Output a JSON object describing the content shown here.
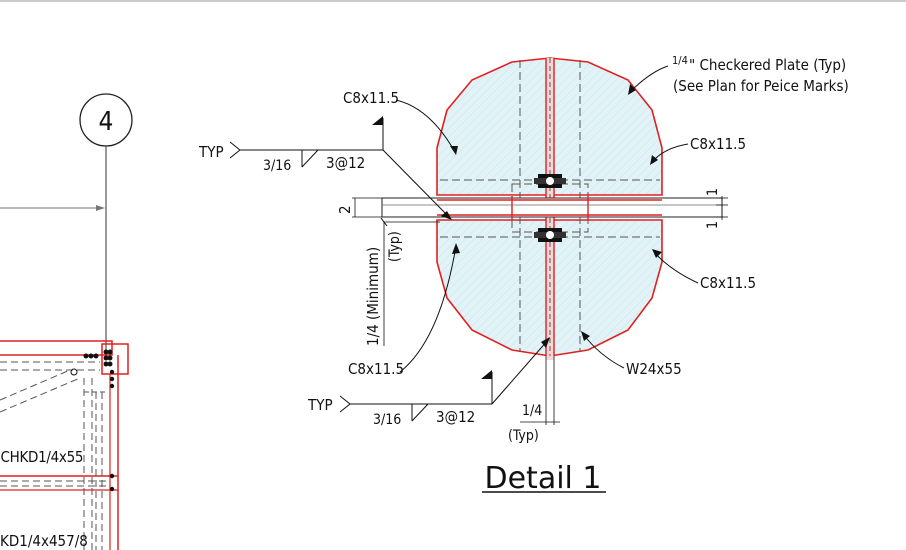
{
  "detail_title": "Detail 1",
  "grid_bubble": "4",
  "labels": {
    "checkered_plate_frac": "1/4",
    "checkered_plate": "\" Checkered Plate (Typ)",
    "see_plan": "(See Plan for Peice Marks)",
    "c8_top_left": "C8x11.5",
    "c8_top_right": "C8x11.5",
    "c8_bottom_right": "C8x11.5",
    "c8_bottom_left": "C8x11.5",
    "w24": "W24x55",
    "typ_top": "TYP",
    "typ_bottom": "TYP",
    "weld_size_top": "3/16",
    "weld_pitch_top": "3@12",
    "weld_size_bottom": "3/16",
    "weld_pitch_bottom": "3@12",
    "dim_2": "2",
    "dim_1_top": "1",
    "dim_1_bottom": "1",
    "min_quarter": "1/4 (Minimum)",
    "min_typ": "(Typ)",
    "quarter_bottom": "1/4",
    "typ_paren_bottom": "(Typ)",
    "chkd_1": "CHKD1/4x55",
    "chkd_2": "KD1/4x457/8"
  },
  "colors": {
    "plate_outline": "#e02020",
    "plate_fill": "#dff1f7",
    "ink": "#111111",
    "dash": "#555555"
  }
}
